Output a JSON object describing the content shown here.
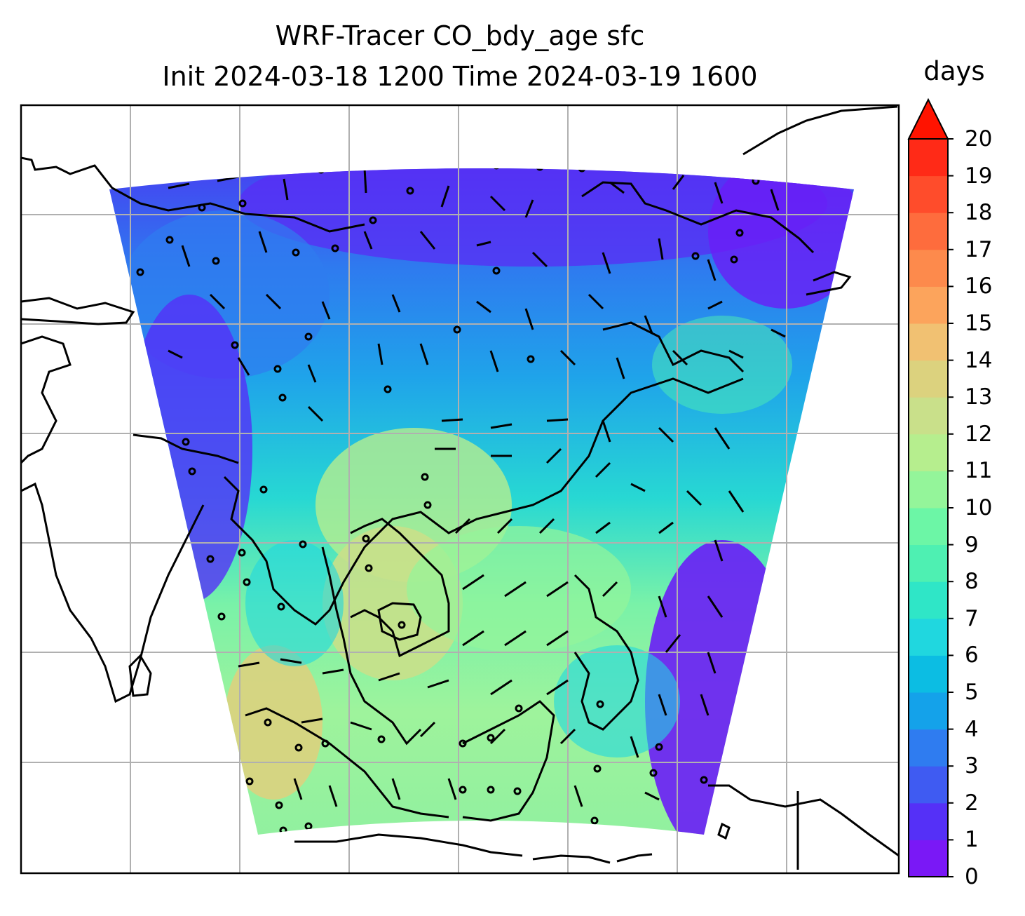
{
  "title_line1": "WRF-Tracer CO_bdy_age sfc",
  "title_line2": "Init 2024-03-18 1200 Time 2024-03-19 1600",
  "colorbar": {
    "unit": "days",
    "ticks": [
      "0",
      "1",
      "2",
      "3",
      "4",
      "5",
      "6",
      "7",
      "8",
      "9",
      "10",
      "11",
      "12",
      "13",
      "14",
      "15",
      "16",
      "17",
      "18",
      "19",
      "20"
    ],
    "colors": [
      "#7a18f6",
      "#5530f7",
      "#3f5bf2",
      "#2f7cf0",
      "#14a2ea",
      "#0cbde3",
      "#20d7df",
      "#2fe6c7",
      "#4ef0b2",
      "#6cf6a6",
      "#94f59a",
      "#b6ee8e",
      "#c9e08a",
      "#dcd27e",
      "#f1c172",
      "#fca45c",
      "#fd8a4c",
      "#fe6c3d",
      "#ff4c2b",
      "#ff2a17"
    ],
    "extend_color": "#ff1300"
  }
}
